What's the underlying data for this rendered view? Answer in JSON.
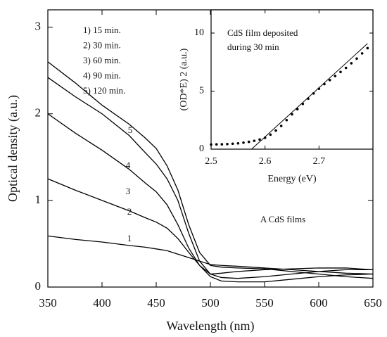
{
  "chart_data": [
    {
      "type": "line",
      "x_label": "Wavelength (nm)",
      "y_label": "Optical density (a.u.)",
      "annotation": "A CdS films",
      "curve_labels": [
        "1",
        "2",
        "3",
        "4",
        "5"
      ],
      "x": [
        350,
        375,
        400,
        425,
        440,
        450,
        460,
        470,
        480,
        490,
        500,
        510,
        525,
        550,
        575,
        600,
        625,
        650
      ],
      "series": [
        {
          "name": "1) 15 min.",
          "color": "#000000",
          "values": [
            0.59,
            0.55,
            0.52,
            0.48,
            0.46,
            0.44,
            0.42,
            0.38,
            0.34,
            0.3,
            0.26,
            0.25,
            0.24,
            0.22,
            0.2,
            0.18,
            0.16,
            0.15
          ]
        },
        {
          "name": "2) 30 min.",
          "color": "#000000",
          "values": [
            1.25,
            1.12,
            1.0,
            0.88,
            0.8,
            0.75,
            0.68,
            0.56,
            0.4,
            0.25,
            0.15,
            0.11,
            0.1,
            0.12,
            0.15,
            0.18,
            0.2,
            0.2
          ]
        },
        {
          "name": "3) 60 min.",
          "color": "#000000",
          "values": [
            2.0,
            1.78,
            1.58,
            1.36,
            1.2,
            1.1,
            0.95,
            0.72,
            0.45,
            0.25,
            0.12,
            0.07,
            0.06,
            0.06,
            0.09,
            0.12,
            0.14,
            0.15
          ]
        },
        {
          "name": "4) 90 min.",
          "color": "#000000",
          "values": [
            2.42,
            2.2,
            2.0,
            1.75,
            1.55,
            1.42,
            1.25,
            1.0,
            0.62,
            0.3,
            0.15,
            0.16,
            0.18,
            0.2,
            0.21,
            0.22,
            0.22,
            0.2
          ]
        },
        {
          "name": "5) 120 min.",
          "color": "#000000",
          "values": [
            2.6,
            2.36,
            2.1,
            1.88,
            1.72,
            1.6,
            1.4,
            1.12,
            0.72,
            0.4,
            0.25,
            0.23,
            0.22,
            0.21,
            0.18,
            0.15,
            0.12,
            0.1
          ]
        }
      ],
      "xlim": [
        350,
        650
      ],
      "xticks": [
        350,
        400,
        450,
        500,
        550,
        600,
        650
      ],
      "ylim": [
        0,
        3.2
      ],
      "yticks": [
        0,
        1,
        2,
        3
      ]
    },
    {
      "type": "scatter",
      "title": [
        "CdS film deposited",
        "during 30 min"
      ],
      "x_label": "Energy (eV)",
      "y_label": "(OD*E) 2 (a.u.)",
      "series": [
        {
          "color": "#000000",
          "x": [
            2.5,
            2.51,
            2.52,
            2.53,
            2.54,
            2.55,
            2.56,
            2.57,
            2.58,
            2.59,
            2.6,
            2.61,
            2.62,
            2.63,
            2.64,
            2.65,
            2.66,
            2.67,
            2.68,
            2.69,
            2.7,
            2.71,
            2.72,
            2.73,
            2.74,
            2.75,
            2.76,
            2.77,
            2.78,
            2.79
          ],
          "values": [
            0.4,
            0.41,
            0.42,
            0.44,
            0.47,
            0.5,
            0.56,
            0.63,
            0.72,
            0.83,
            0.98,
            1.25,
            1.6,
            2.0,
            2.5,
            3.0,
            3.45,
            3.9,
            4.35,
            4.8,
            5.2,
            5.6,
            5.95,
            6.3,
            6.65,
            7.0,
            7.4,
            7.8,
            8.25,
            8.7
          ]
        }
      ],
      "fit_line": {
        "color": "#000000",
        "x": [
          2.575,
          2.79
        ],
        "values": [
          0,
          9.1
        ]
      },
      "xlim": [
        2.5,
        2.8
      ],
      "xticks": [
        2.5,
        2.6,
        2.7
      ],
      "ylim": [
        0,
        12
      ],
      "yticks": [
        0,
        5,
        10
      ]
    }
  ]
}
